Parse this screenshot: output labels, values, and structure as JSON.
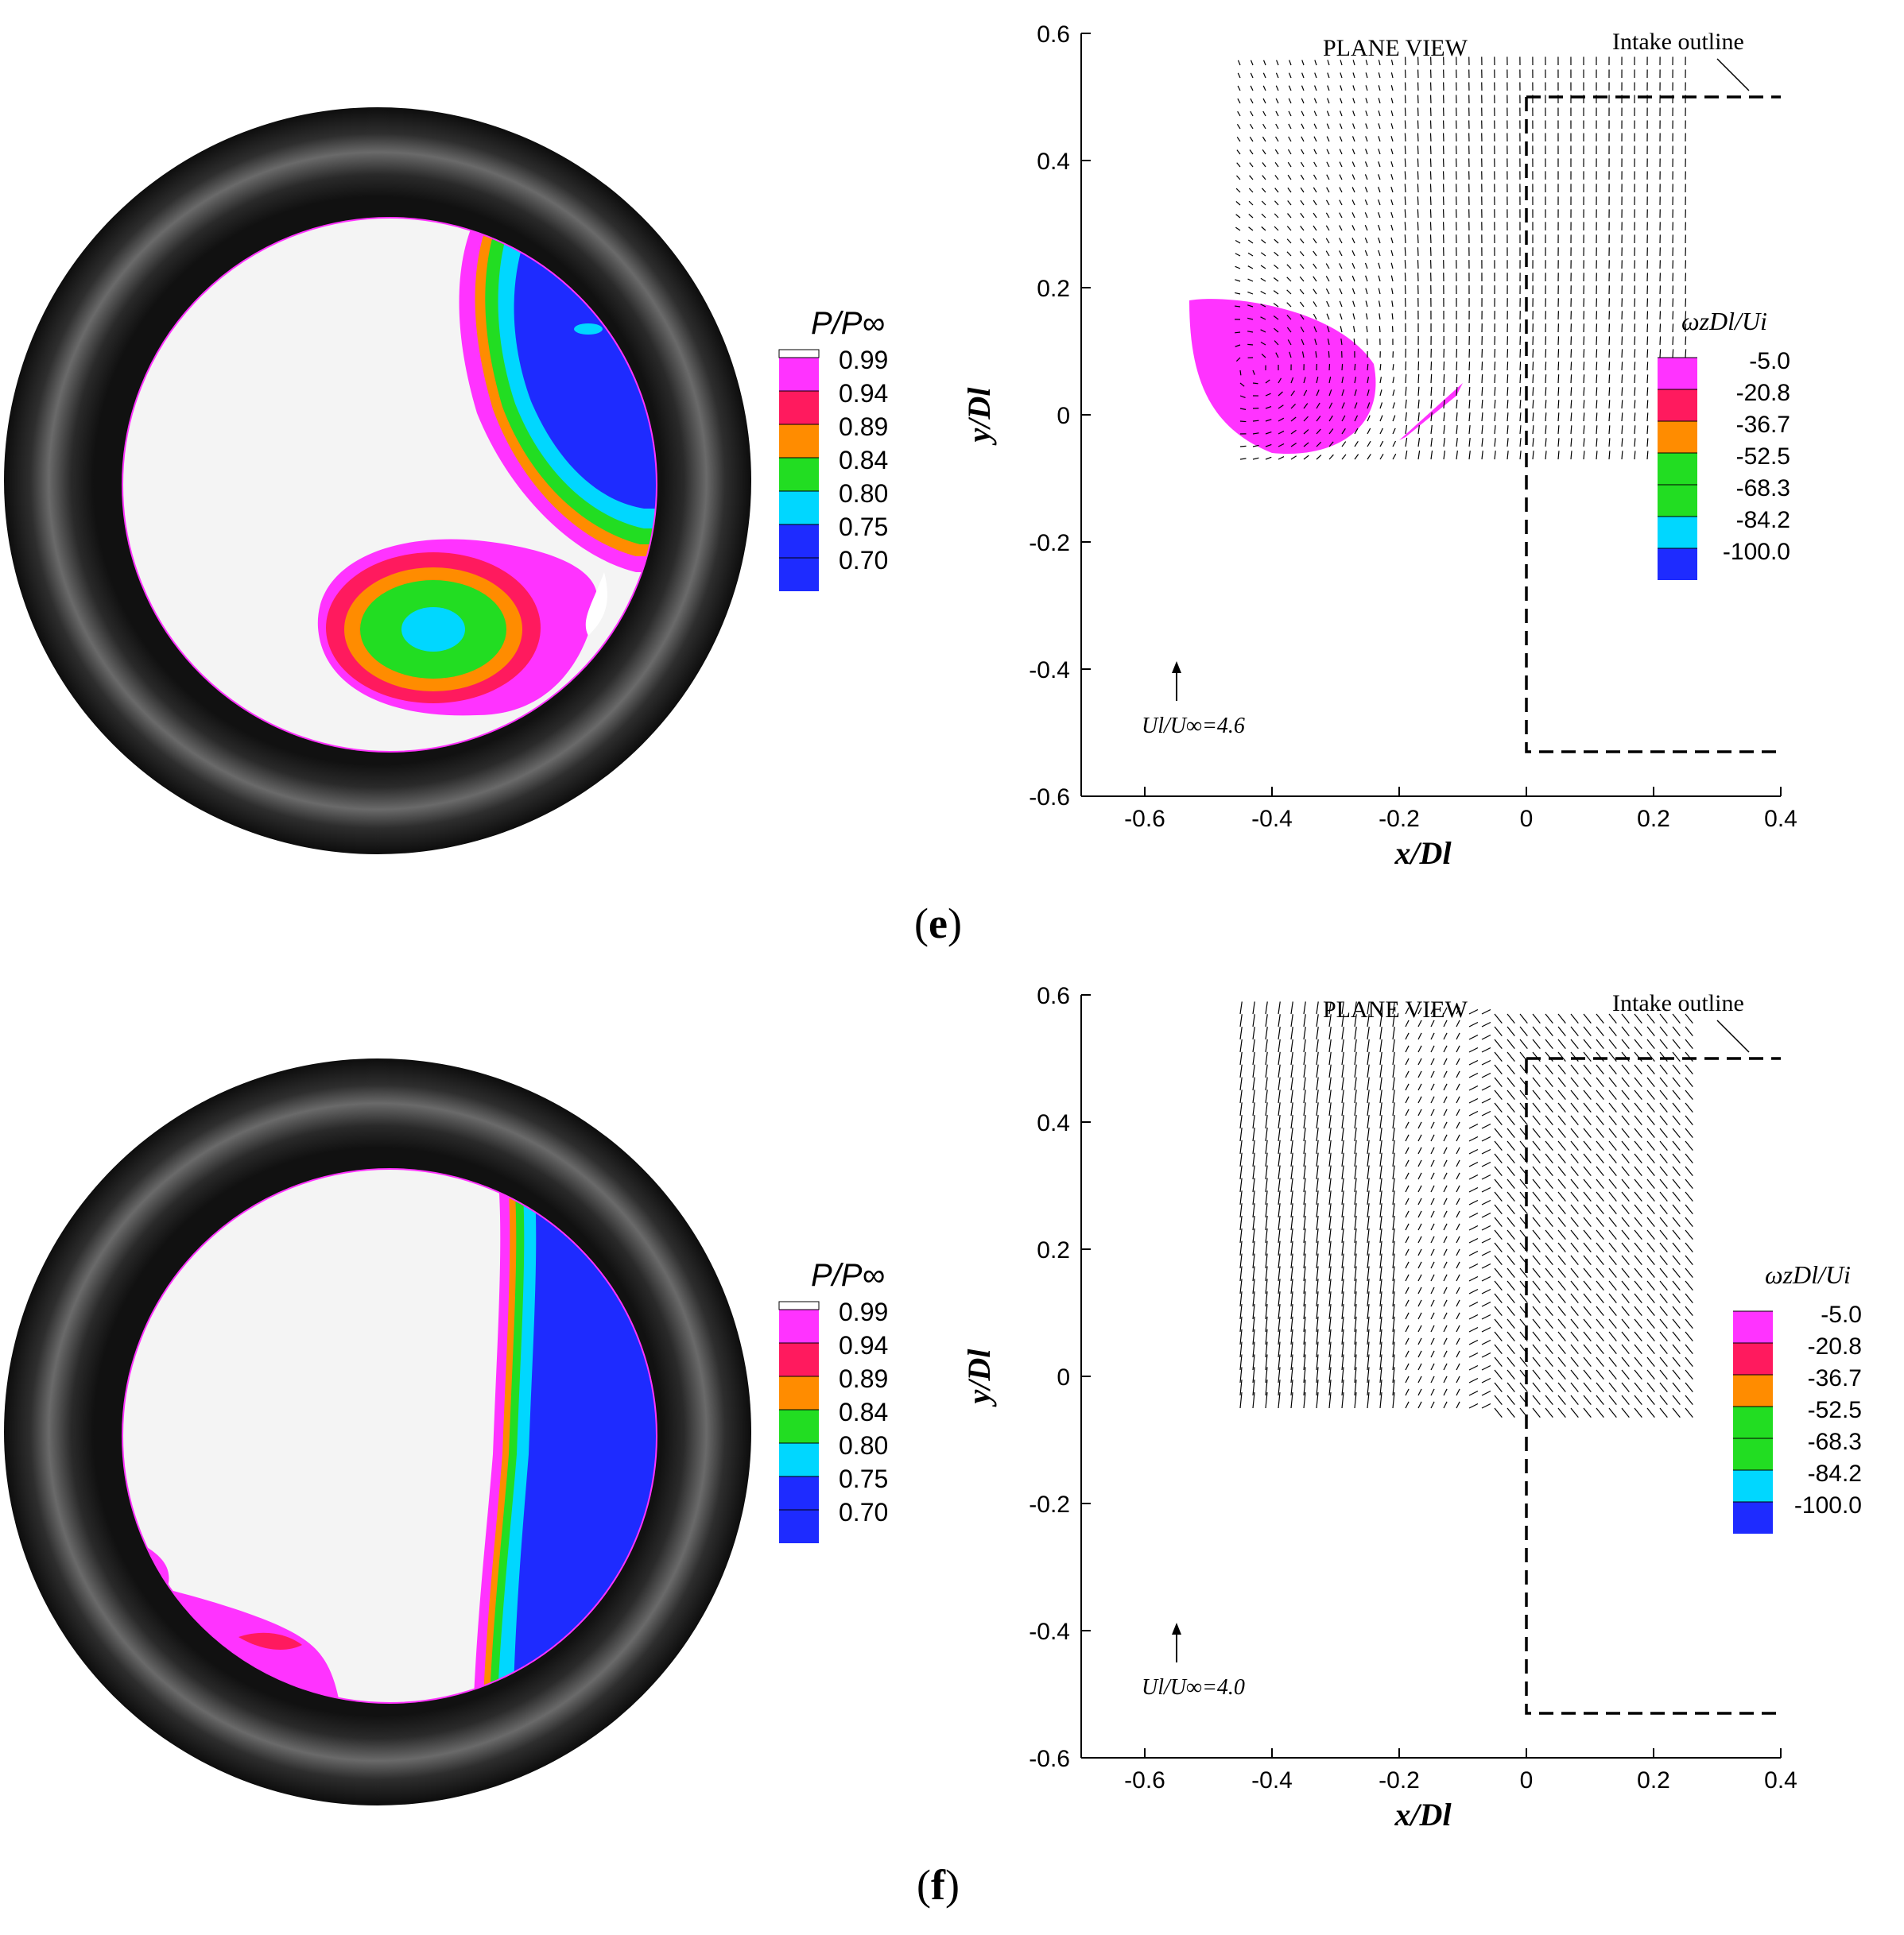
{
  "figures": [
    {
      "label_prefix": "(",
      "label_letter": "e",
      "label_suffix": ")",
      "pressure_legend_title": "P/P∞",
      "pressure_levels": [
        "0.99",
        "0.94",
        "0.89",
        "0.84",
        "0.80",
        "0.75",
        "0.70"
      ],
      "vorticity_legend_title": "ωzDl/Ui",
      "vorticity_levels": [
        "-5.0",
        "-20.8",
        "-36.7",
        "-52.5",
        "-68.3",
        "-84.2",
        "-100.0"
      ],
      "plane_view_label": "PLANE VIEW",
      "intake_outline_label": "Intake outline",
      "velocity_scale_label": "Ul/U∞=4.6"
    },
    {
      "label_prefix": "(",
      "label_letter": "f",
      "label_suffix": ")",
      "pressure_legend_title": "P/P∞",
      "pressure_levels": [
        "0.99",
        "0.94",
        "0.89",
        "0.84",
        "0.80",
        "0.75",
        "0.70"
      ],
      "vorticity_legend_title": "ωzDl/Ui",
      "vorticity_levels": [
        "-5.0",
        "-20.8",
        "-36.7",
        "-52.5",
        "-68.3",
        "-84.2",
        "-100.0"
      ],
      "plane_view_label": "PLANE VIEW",
      "intake_outline_label": "Intake outline",
      "velocity_scale_label": "Ul/U∞=4.0"
    }
  ],
  "colors": {
    "pressure_fill": [
      "#ffffff",
      "#ff33ff",
      "#ff1a5e",
      "#ff8c00",
      "#22dd22",
      "#00d7ff",
      "#1e2bff"
    ],
    "vorticity_fill": [
      "#ff33ff",
      "#ff1a5e",
      "#ff8c00",
      "#22dd22",
      "#22dd22",
      "#00d7ff",
      "#1e2bff"
    ],
    "background_field": "#f4f4f4",
    "ring": "#222222"
  },
  "chart_data": [
    {
      "type": "vector-field",
      "panel": "e",
      "xlabel": "x/Dl",
      "ylabel": "y/Dl",
      "xlim": [
        -0.7,
        0.4
      ],
      "ylim": [
        -0.6,
        0.6
      ],
      "x_ticks": [
        "-0.6",
        "-0.4",
        "-0.2",
        "0",
        "0.2",
        "0.4"
      ],
      "y_ticks": [
        "-0.6",
        "-0.4",
        "-0.2",
        "0",
        "0.2",
        "0.4",
        "0.6"
      ],
      "vector_region": {
        "x": [
          -0.45,
          0.25
        ],
        "y": [
          -0.07,
          0.56
        ]
      },
      "vortex_center": [
        -0.4,
        0.06
      ],
      "vorticity_blob": {
        "x": [
          -0.53,
          -0.24
        ],
        "y": [
          -0.07,
          0.19
        ]
      },
      "intake_outline": {
        "x_wall": 0.0,
        "y_top": 0.5,
        "y_bottom": -0.53,
        "x_end": 0.4
      }
    },
    {
      "type": "vector-field",
      "panel": "f",
      "xlabel": "x/Dl",
      "ylabel": "y/Dl",
      "xlim": [
        -0.7,
        0.4
      ],
      "ylim": [
        -0.6,
        0.6
      ],
      "x_ticks": [
        "-0.6",
        "-0.4",
        "-0.2",
        "0",
        "0.2",
        "0.4"
      ],
      "y_ticks": [
        "-0.6",
        "-0.4",
        "-0.2",
        "0",
        "0.2",
        "0.4",
        "0.6"
      ],
      "vector_region": {
        "x": [
          -0.45,
          0.25
        ],
        "y": [
          -0.05,
          0.58
        ]
      },
      "intake_outline": {
        "x_wall": 0.0,
        "y_top": 0.5,
        "y_bottom": -0.53,
        "x_end": 0.4
      }
    }
  ]
}
